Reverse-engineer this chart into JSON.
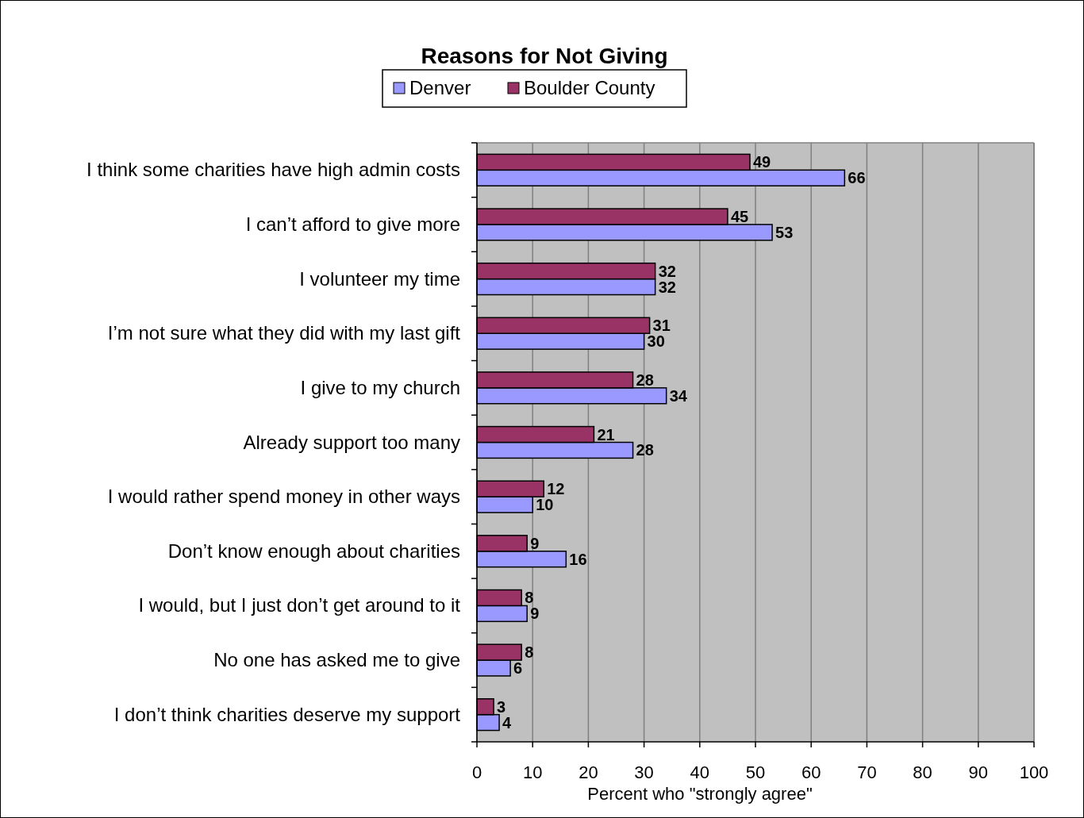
{
  "chart_data": {
    "type": "bar",
    "orientation": "horizontal",
    "title": "Reasons for Not Giving",
    "xlabel": "Percent who \"strongly agree\"",
    "categories": [
      "I think some charities have high admin costs",
      "I can’t afford to give more",
      "I volunteer my time",
      "I’m not sure what they did with my last gift",
      "I give to my church",
      "Already support too many",
      "I would rather spend money in other ways",
      "Don’t know enough about charities",
      "I would, but I just don’t get around to it",
      "No one has asked me to give",
      "I don’t think charities deserve my support"
    ],
    "series": [
      {
        "name": "Denver",
        "color": "#9999ff",
        "values": [
          66,
          53,
          32,
          30,
          34,
          28,
          10,
          16,
          9,
          6,
          4
        ]
      },
      {
        "name": "Boulder County",
        "color": "#993366",
        "values": [
          49,
          45,
          32,
          31,
          28,
          21,
          12,
          9,
          8,
          8,
          3
        ]
      }
    ],
    "xlim": [
      0,
      100
    ],
    "xticks": [
      0,
      10,
      20,
      30,
      40,
      50,
      60,
      70,
      80,
      90,
      100
    ],
    "grid": "x",
    "legend": "top",
    "data_labels": true
  }
}
